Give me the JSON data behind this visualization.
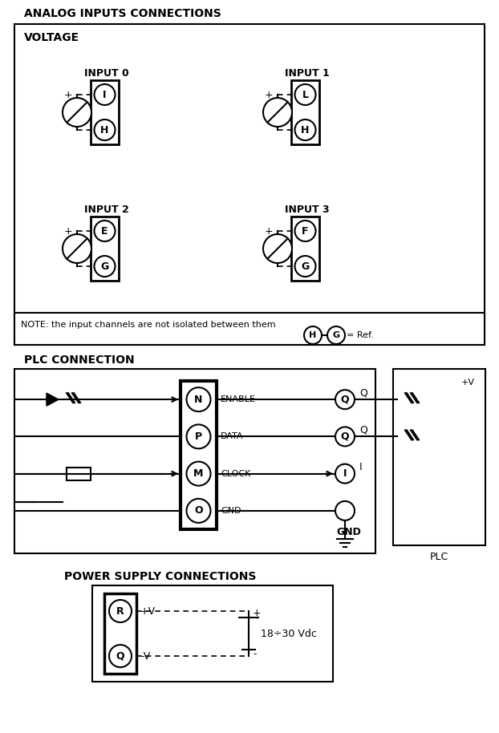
{
  "bg_color": "#ffffff",
  "line_color": "#000000",
  "title_analog": "ANALOG INPUTS CONNECTIONS",
  "title_voltage": "VOLTAGE",
  "title_plc": "PLC CONNECTION",
  "title_power": "POWER SUPPLY CONNECTIONS",
  "input_labels": [
    "INPUT 0",
    "INPUT 1",
    "INPUT 2",
    "INPUT 3"
  ],
  "connector_labels_top": [
    "I",
    "L",
    "E",
    "F"
  ],
  "connector_labels_bot": [
    "H",
    "H",
    "G",
    "G"
  ],
  "plc_connector_labels": [
    "N",
    "P",
    "M",
    "O"
  ],
  "plc_signal_labels": [
    "ENABLE",
    "DATA",
    "CLOCK",
    "GND"
  ],
  "plc_q_labels": [
    "Q",
    "Q",
    "I",
    ""
  ],
  "power_labels": [
    "R",
    "Q"
  ],
  "note_text": "NOTE: the input channels are not isolated between them",
  "note_circles": [
    "H",
    "G"
  ],
  "note_eq": "= Ref."
}
